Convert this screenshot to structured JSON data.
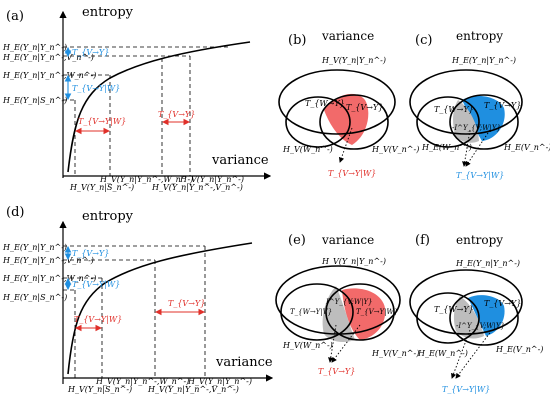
{
  "panels": {
    "a": {
      "tag": "(a)",
      "ylabel": "entropy",
      "xlabel": "variance",
      "yticks": [
        "H_E(Y_n|Y_n^-)",
        "H_E(Y_n|Y_n^-,V_n^-)",
        "H_E(Y_n|Y_n^-,W_n^-)",
        "H_E(Y_n|S_n^-)"
      ],
      "xticks": [
        "H_V(Y_n|S_n^-)",
        "H_V(Y_n|Y_n^-,W_n^-)",
        "H_V(Y_n|Y_n^-,V_n^-)",
        "H_V(Y_n|Y_n^-)"
      ],
      "blue_labels": [
        "T_{V→Y}",
        "T_{V→Y|W}"
      ],
      "red_labels": [
        "T_{V→Y|W}",
        "T_{V→Y}"
      ]
    },
    "d": {
      "tag": "(d)",
      "ylabel": "entropy",
      "xlabel": "variance",
      "yticks": [
        "H_E(Y_n|Y_n^-)",
        "H_E(Y_n|Y_n^-,V_n^-)",
        "H_E(Y_n|Y_n^-,W_n^-)",
        "H_E(Y_n|S_n^-)"
      ],
      "xticks": [
        "H_V(Y_n|S_n^-)",
        "H_V(Y_n|Y_n^-,W_n^-)",
        "H_V(Y_n|Y_n^-,V_n^-)",
        "H_V(Y_n|Y_n^-)"
      ],
      "blue_labels": [
        "T_{V→Y}",
        "T_{V→Y|W}"
      ],
      "red_labels": [
        "T_{V→Y|W}",
        "T_{V→Y}"
      ]
    },
    "b": {
      "tag": "(b)",
      "title": "variance",
      "top": "H_V(Y_n|Y_n^-)",
      "left_bottom": "H_V(W_n^-)",
      "right_bottom": "H_V(V_n^-)",
      "inner_left": "T_{W→Y}",
      "inner_right": "T_{V→Y}",
      "arrow_label": "T_{V→Y|W}"
    },
    "c": {
      "tag": "(c)",
      "title": "entropy",
      "top": "H_E(Y_n|Y_n^-)",
      "left_bottom": "H_E(W_n^-)",
      "right_bottom": "H_E(V_n^-)",
      "inner_left": "T_{W→Y}",
      "inner_mid": "-I^Y_{V;W|Y}",
      "inner_right": "T_{V→Y}",
      "arrow_label": "T_{V→Y|W}"
    },
    "e": {
      "tag": "(e)",
      "title": "variance",
      "top": "H_V(Y_n|Y_n^-)",
      "left_bottom": "H_V(W_n^-)",
      "right_bottom": "H_V(V_n^-)",
      "inner_left": "T_{W→Y|V}",
      "inner_mid": "I^Y_{V;W|Y}",
      "inner_right": "T_{V→Y|W}",
      "arrow_label": "T_{V→Y}"
    },
    "f": {
      "tag": "(f)",
      "title": "entropy",
      "top": "H_E(Y_n|Y_n^-)",
      "left_bottom": "H_E(W_n^-)",
      "right_bottom": "H_E(V_n^-)",
      "inner_left": "T_{W→Y}",
      "inner_mid": "-I^Y_{V;W|Y}",
      "inner_right": "T_{V→Y}",
      "arrow_label": "T_{V→Y|W}"
    }
  },
  "colors": {
    "blue": "#1f8fe0",
    "red": "#e0302a",
    "gray": "#bdbdbd"
  }
}
